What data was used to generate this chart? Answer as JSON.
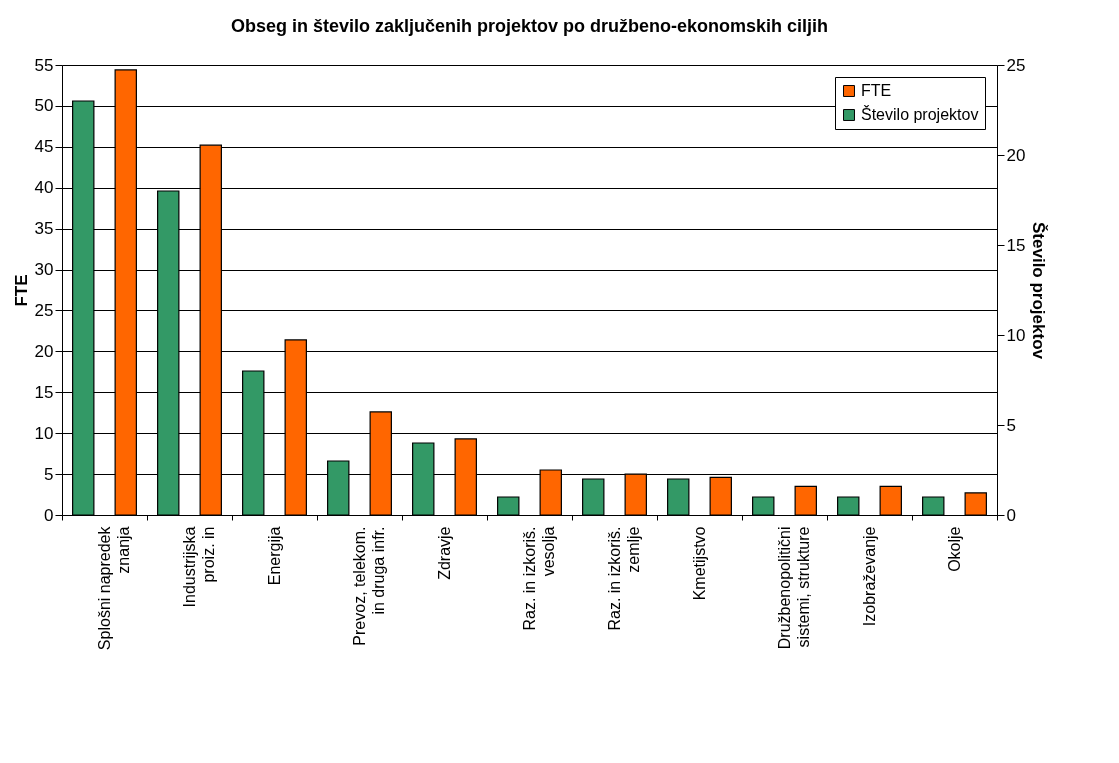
{
  "chart_data": {
    "type": "bar",
    "title": "Obseg in število zaključenih projektov po družbeno-ekonomskih ciljih",
    "categories": [
      "Splošni napredek znanja",
      "Industrijska proiz. in",
      "Energija",
      "Prevoz, telekom. in druga infr.",
      "Zdravje",
      "Raz. in izkoriš. vesolja",
      "Raz. in izkoriš. zemlje",
      "Kmetijstvo",
      "Družbenopolitični sistemi, strukture",
      "Izobraževanje",
      "Okolje"
    ],
    "series": [
      {
        "name": "FTE",
        "color": "#ff6600",
        "values": [
          54.4,
          45.2,
          21.4,
          12.6,
          9.3,
          5.5,
          5.0,
          4.6,
          3.5,
          3.5,
          2.7
        ]
      },
      {
        "name": "Število projektov",
        "color": "#339966",
        "axis": "y2",
        "values": [
          23,
          18,
          8,
          3,
          4,
          1,
          2,
          2,
          1,
          1,
          1
        ]
      }
    ],
    "ylabel": "FTE",
    "y2label": "Število projektov",
    "ylim": [
      0,
      55
    ],
    "yticks": [
      0,
      5,
      10,
      15,
      20,
      25,
      30,
      35,
      40,
      45,
      50,
      55
    ],
    "y2lim": [
      0,
      25
    ],
    "y2ticks": [
      0,
      5,
      10,
      15,
      20,
      25
    ],
    "grid": "y",
    "legend": "top right"
  }
}
